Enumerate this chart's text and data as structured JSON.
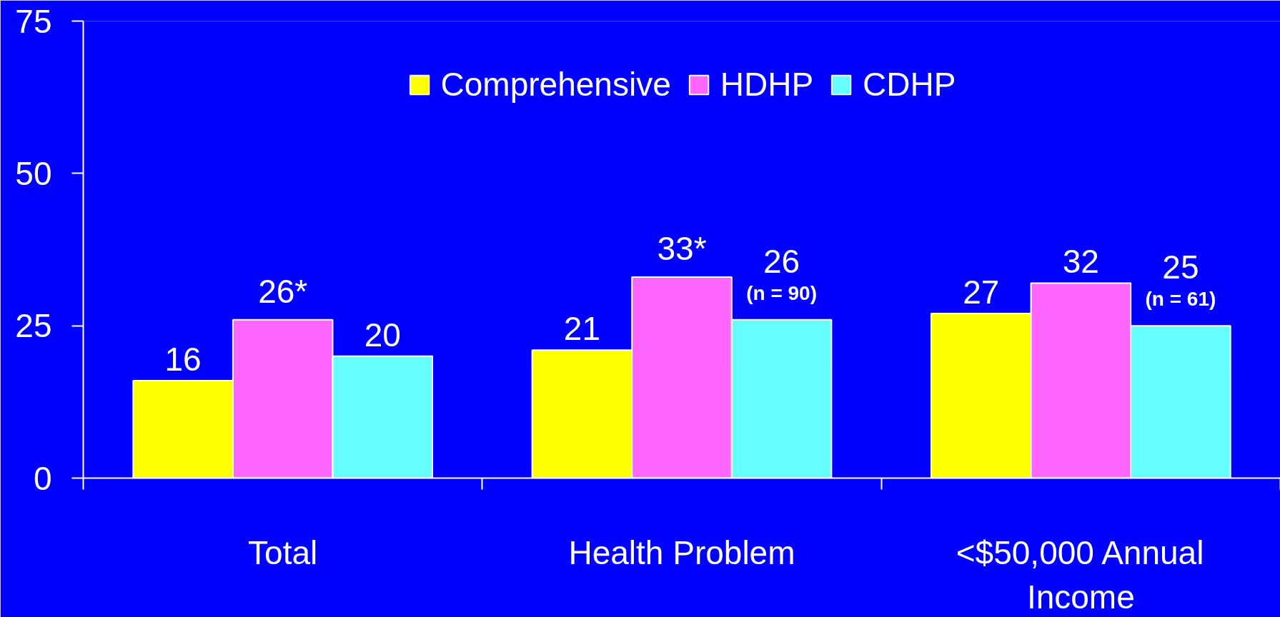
{
  "chart_data": {
    "type": "bar",
    "categories": [
      "Total",
      "Health Problem",
      "<$50,000 Annual Income"
    ],
    "series": [
      {
        "name": "Comprehensive",
        "color": "#ffff00",
        "values": [
          16,
          21,
          27
        ],
        "value_labels": [
          "16",
          "21",
          "27"
        ]
      },
      {
        "name": "HDHP",
        "color": "#ff66ff",
        "values": [
          26,
          33,
          32
        ],
        "value_labels": [
          "26*",
          "33*",
          "32"
        ]
      },
      {
        "name": "CDHP",
        "color": "#66ffff",
        "values": [
          20,
          26,
          25
        ],
        "value_labels": [
          "20",
          "26",
          "25"
        ]
      }
    ],
    "ylim": [
      0,
      75
    ],
    "yticks": [
      0,
      25,
      50,
      75
    ],
    "grid": false,
    "legend": "top",
    "annotations": [
      "(n = 90)",
      "(n = 61)"
    ]
  }
}
